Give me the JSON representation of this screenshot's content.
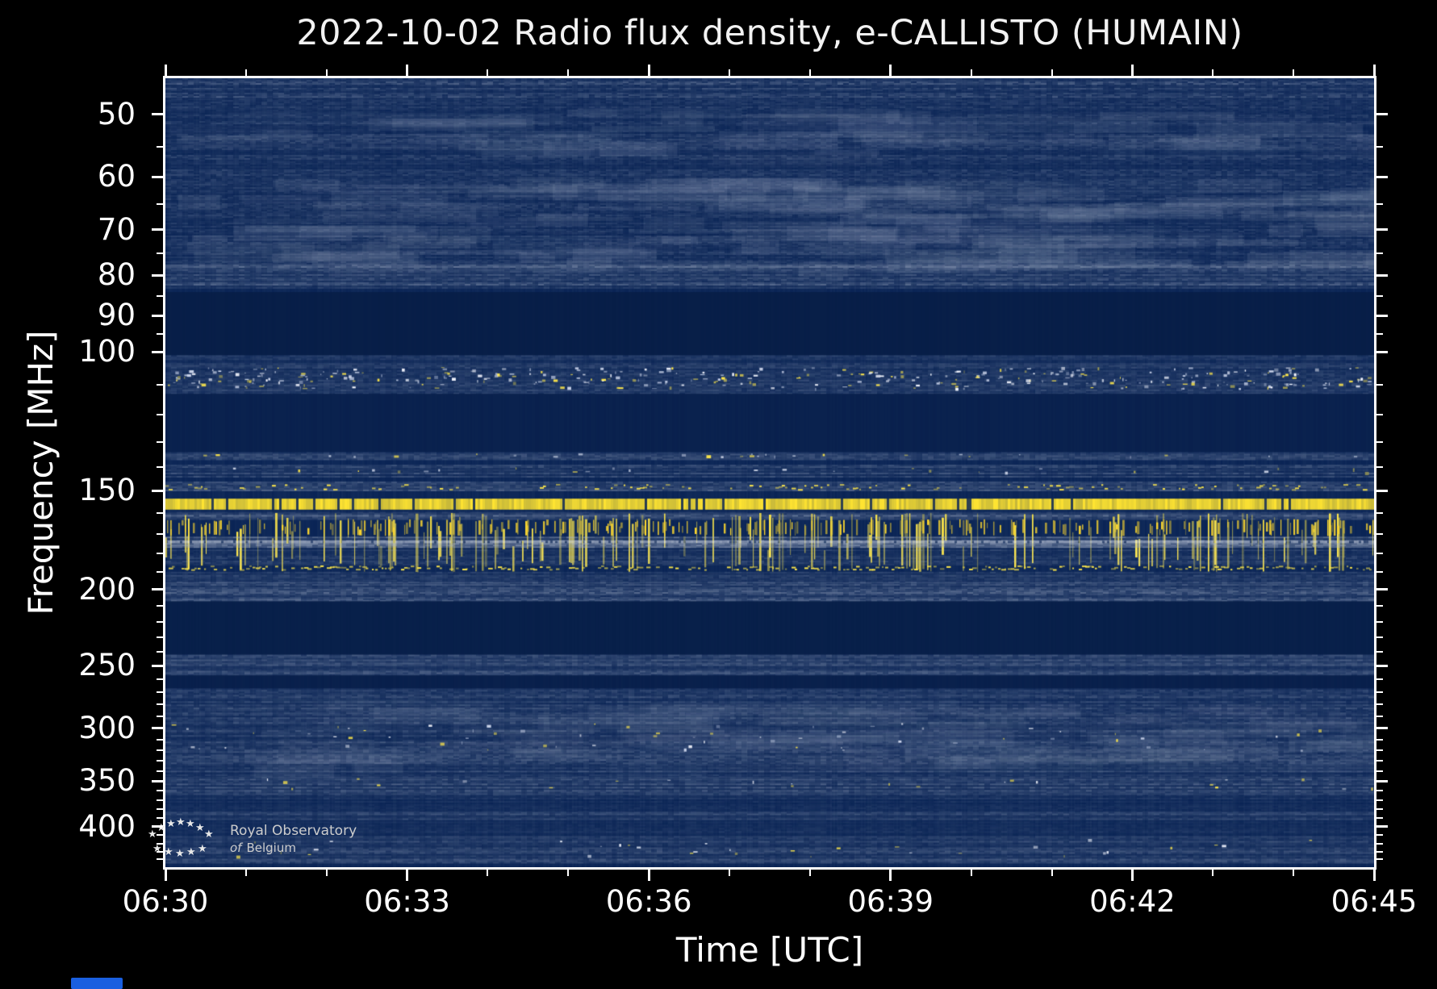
{
  "page": {
    "background": "#000000"
  },
  "title": "2022-10-02 Radio flux density, e-CALLISTO (HUMAIN)",
  "chart_data": {
    "type": "heatmap",
    "subtype": "radio-spectrogram",
    "title": "2022-10-02 Radio flux density, e-CALLISTO (HUMAIN)",
    "date": "2022-10-02",
    "instrument": "e-CALLISTO",
    "station": "HUMAIN",
    "xlabel": "Time [UTC]",
    "ylabel": "Frequency [MHz]",
    "x_range": [
      "06:30",
      "06:45"
    ],
    "x_major_ticks": [
      "06:30",
      "06:33",
      "06:36",
      "06:39",
      "06:42",
      "06:45"
    ],
    "x_minor_tick_interval_min": 1,
    "y_range_mhz": [
      45,
      450
    ],
    "y_scale": "log",
    "y_orientation": "low frequency at top",
    "y_major_ticks": [
      50,
      60,
      70,
      80,
      90,
      100,
      150,
      200,
      250,
      300,
      350,
      400
    ],
    "y_minor_ticks": [
      55,
      65,
      75,
      85,
      95,
      110,
      120,
      130,
      140,
      160,
      170,
      180,
      190,
      210,
      220,
      230,
      240,
      260,
      270,
      280,
      290,
      310,
      320,
      330,
      340,
      360,
      370,
      380,
      390,
      410,
      420,
      430,
      440
    ],
    "colormap": {
      "background": "#0a2455",
      "noise": "#a9b4c9",
      "strong_rfi": "#ffe431"
    },
    "features": [
      {
        "f": [
          45,
          47.5
        ],
        "kind": "texture",
        "base": 0.05,
        "variation": 0.22,
        "note": "speckled strip at top edge"
      },
      {
        "f": [
          47.5,
          78
        ],
        "kind": "texture",
        "base": 0.03,
        "variation": 0.13,
        "note": "galactic background, fine horizontal streaks 47-78 MHz"
      },
      {
        "f": [
          49,
          56
        ],
        "kind": "clouds",
        "count": 70,
        "alpha": 0.09,
        "note": "brighter diffuse patches near 52 MHz"
      },
      {
        "f": [
          60,
          77
        ],
        "kind": "clouds",
        "count": 160,
        "alpha": 0.1,
        "note": "brighter diffuse patches 60-77 MHz"
      },
      {
        "f": [
          77.5,
          83
        ],
        "kind": "texture",
        "base": 0.1,
        "variation": 0.2,
        "note": "noise band near 80 MHz"
      },
      {
        "f": [
          84,
          101
        ],
        "kind": "flat",
        "color": "#071d45",
        "alpha": 0.85,
        "note": "quiet dark band 85-100 MHz"
      },
      {
        "f": [
          101,
          104
        ],
        "kind": "texture",
        "base": 0.05,
        "variation": 0.12,
        "note": "faint lane above airband"
      },
      {
        "f": [
          104,
          113
        ],
        "kind": "texture",
        "base": 0.05,
        "variation": 0.14,
        "note": "aeronautical band noise floor"
      },
      {
        "f": [
          104.5,
          112
        ],
        "kind": "speckles",
        "density": 0.5,
        "colors": [
          "#ffe84a",
          "#f5f7ff",
          "#c9d2e8"
        ],
        "note": "bright intermittent RFI bursts (aircraft band)"
      },
      {
        "f": [
          113,
          134
        ],
        "kind": "flat",
        "color": "#081f4a",
        "alpha": 0.7,
        "note": "quiet band 113-134 MHz"
      },
      {
        "f": [
          134,
          137
        ],
        "kind": "texture",
        "base": 0.09,
        "variation": 0.18,
        "note": "thin noisy lane ~135 MHz"
      },
      {
        "f": [
          134.5,
          136.5
        ],
        "kind": "speckles",
        "density": 0.18,
        "colors": [
          "#d8deee",
          "#ffe84a"
        ]
      },
      {
        "f": [
          139,
          144
        ],
        "kind": "texture",
        "base": 0.07,
        "variation": 0.16,
        "note": "noisy lane ~140 MHz"
      },
      {
        "f": [
          140,
          143
        ],
        "kind": "speckles",
        "density": 0.12,
        "colors": [
          "#ffe84a",
          "#d8deee"
        ]
      },
      {
        "f": [
          146,
          150
        ],
        "kind": "texture",
        "base": 0.1,
        "variation": 0.2,
        "note": "gray lane above strong carrier"
      },
      {
        "f": [
          147,
          150
        ],
        "kind": "dotline",
        "density": 0.3,
        "color": "#ffe84a"
      },
      {
        "f": [
          153.5,
          158.5
        ],
        "kind": "hline",
        "color": "#ffe431",
        "alpha": 0.96,
        "gap_density": 0.05,
        "note": "strong continuous RFI carrier ~156 MHz (brightest feature)"
      },
      {
        "f": [
          159.5,
          163
        ],
        "kind": "texture",
        "base": 0.13,
        "variation": 0.22,
        "note": "gray lane below carrier"
      },
      {
        "f": [
          160,
          190
        ],
        "kind": "vbursts",
        "density": 0.2,
        "color": "#ffe84a",
        "note": "sporadic broadband vertical RFI spikes 160-190 MHz"
      },
      {
        "f": [
          163,
          171
        ],
        "kind": "vbursts",
        "density": 0.3,
        "color": "#ffd92e",
        "note": "dense vertical RFI spikes"
      },
      {
        "f": [
          171.5,
          177
        ],
        "kind": "texture",
        "base": 0.2,
        "variation": 0.25,
        "note": "bright gray band ~174 MHz"
      },
      {
        "f": [
          173.5,
          174.8
        ],
        "kind": "hline",
        "color": "#e8ecf5",
        "alpha": 0.5,
        "gap_density": 0.15,
        "note": "whitish carrier inside gray band"
      },
      {
        "f": [
          178,
          186
        ],
        "kind": "texture",
        "base": 0.05,
        "variation": 0.12
      },
      {
        "f": [
          186.5,
          189.5
        ],
        "kind": "dotline",
        "density": 0.55,
        "color": "#ffe84a",
        "note": "broken yellow carrier ~188 MHz"
      },
      {
        "f": [
          190,
          196
        ],
        "kind": "texture",
        "base": 0.06,
        "variation": 0.13
      },
      {
        "f": [
          196,
          207
        ],
        "kind": "texture",
        "base": 0.11,
        "variation": 0.2,
        "note": "noise band near 200 MHz"
      },
      {
        "f": [
          207,
          242
        ],
        "kind": "flat",
        "color": "#071d45",
        "alpha": 0.75,
        "note": "quiet band 207-242 MHz"
      },
      {
        "f": [
          242,
          257
        ],
        "kind": "texture",
        "base": 0.1,
        "variation": 0.18,
        "note": "noise band near 250 MHz"
      },
      {
        "f": [
          257,
          267
        ],
        "kind": "flat",
        "color": "#071d45",
        "alpha": 0.6
      },
      {
        "f": [
          267,
          340
        ],
        "kind": "texture",
        "base": 0.06,
        "variation": 0.16,
        "note": "broad noisy region 270-340 MHz"
      },
      {
        "f": [
          275,
          335
        ],
        "kind": "clouds",
        "count": 120,
        "alpha": 0.07
      },
      {
        "f": [
          295,
          322
        ],
        "kind": "speckles",
        "density": 0.07,
        "colors": [
          "#e6e9f2",
          "#ffe84a",
          "#c9d2e8"
        ],
        "note": "sparse bursts near 300-320 MHz"
      },
      {
        "f": [
          340,
          346
        ],
        "kind": "texture",
        "base": 0.04,
        "variation": 0.1
      },
      {
        "f": [
          346,
          364
        ],
        "kind": "texture",
        "base": 0.09,
        "variation": 0.18,
        "note": "noise band near 350 MHz"
      },
      {
        "f": [
          347,
          360
        ],
        "kind": "speckles",
        "density": 0.06,
        "colors": [
          "#e6e9f2",
          "#ffe84a"
        ]
      },
      {
        "f": [
          364,
          383
        ],
        "kind": "texture",
        "base": 0.03,
        "variation": 0.08
      },
      {
        "f": [
          383,
          392
        ],
        "kind": "texture",
        "base": 0.1,
        "variation": 0.16,
        "note": "gray band near 385 MHz"
      },
      {
        "f": [
          392,
          411
        ],
        "kind": "texture",
        "base": 0.03,
        "variation": 0.07
      },
      {
        "f": [
          411,
          445
        ],
        "kind": "texture",
        "base": 0.08,
        "variation": 0.16,
        "note": "bottom noisy band 410-445 MHz"
      },
      {
        "f": [
          414,
          440
        ],
        "kind": "speckles",
        "density": 0.05,
        "colors": [
          "#dfe4f0",
          "#ffe84a"
        ]
      }
    ]
  },
  "footer": {
    "logo_line1": "Royal Observatory",
    "logo_line2_word1": "of",
    "logo_line2_word2": "Belgium"
  }
}
